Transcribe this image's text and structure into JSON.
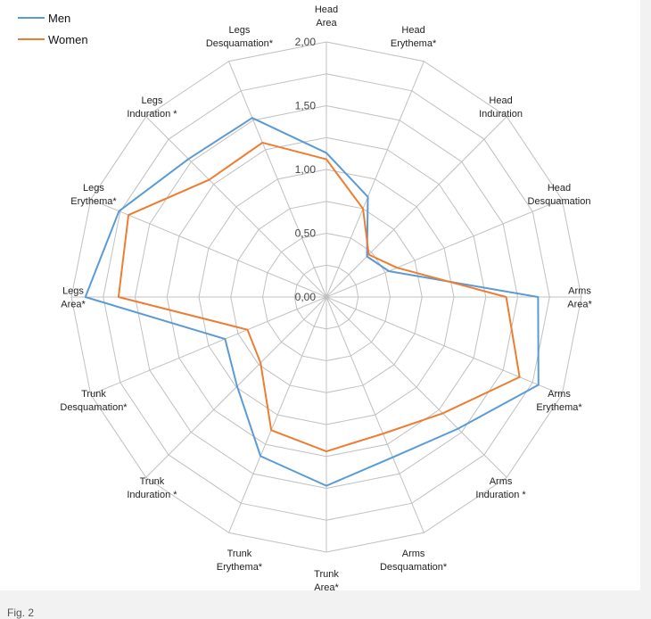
{
  "chart_data": {
    "type": "radar",
    "categories": [
      [
        "Head",
        "Area"
      ],
      [
        "Head",
        "Erythema*"
      ],
      [
        "Head",
        "Induration"
      ],
      [
        "Head",
        "Desquamation"
      ],
      [
        "Arms",
        "Area*"
      ],
      [
        "Arms",
        "Erythema*"
      ],
      [
        "Arms",
        "Induration *"
      ],
      [
        "Arms",
        "Desquamation*"
      ],
      [
        "Trunk",
        "Area*"
      ],
      [
        "Trunk",
        "Erythema*"
      ],
      [
        "Trunk",
        "Induration *"
      ],
      [
        "Trunk",
        "Desquamation*"
      ],
      [
        "Legs",
        "Area*"
      ],
      [
        "Legs",
        "Erythema*"
      ],
      [
        "Legs",
        "Induration *"
      ],
      [
        "Legs",
        "Desquamation*"
      ]
    ],
    "rlim": [
      0,
      2
    ],
    "ticks": [
      "0,00",
      "0,50",
      "1,00",
      "1,50",
      "2,00"
    ],
    "tick_values": [
      0,
      0.5,
      1.0,
      1.5,
      2.0
    ],
    "grid_rings": 8,
    "legend_position": "top-left",
    "series": [
      {
        "name": "Men",
        "color": "#5b9bd5",
        "values": [
          1.13,
          0.85,
          0.45,
          0.53,
          1.66,
          1.8,
          1.46,
          1.36,
          1.48,
          1.35,
          0.99,
          0.86,
          1.89,
          1.76,
          1.53,
          1.52
        ]
      },
      {
        "name": "Women",
        "color": "#ed7d31",
        "values": [
          1.08,
          0.75,
          0.47,
          0.6,
          1.41,
          1.64,
          1.29,
          1.16,
          1.21,
          1.13,
          0.73,
          0.67,
          1.63,
          1.68,
          1.3,
          1.31
        ]
      }
    ],
    "title": "",
    "xlabel": "",
    "ylabel": ""
  },
  "caption": "Fig. 2"
}
